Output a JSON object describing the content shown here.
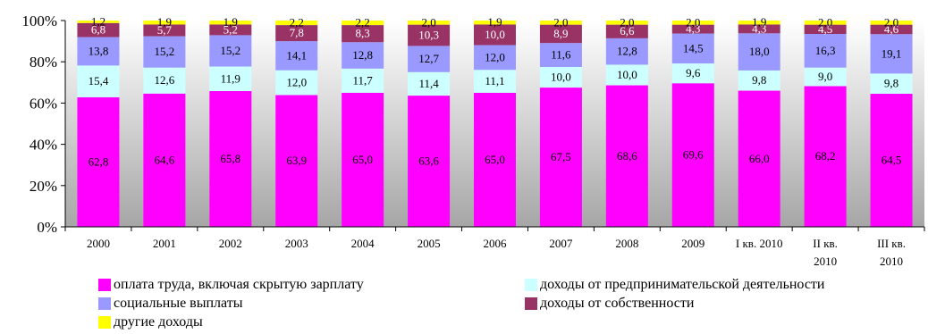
{
  "chart_data": {
    "type": "bar",
    "stacked": true,
    "percent": true,
    "categories": [
      "2000",
      "2001",
      "2002",
      "2003",
      "2004",
      "2005",
      "2006",
      "2007",
      "2008",
      "2009",
      "I кв. 2010",
      "II кв. 2010",
      "III кв. 2010"
    ],
    "category_lines": [
      [
        "2000"
      ],
      [
        "2001"
      ],
      [
        "2002"
      ],
      [
        "2003"
      ],
      [
        "2004"
      ],
      [
        "2005"
      ],
      [
        "2006"
      ],
      [
        "2007"
      ],
      [
        "2008"
      ],
      [
        "2009"
      ],
      [
        "I кв. 2010"
      ],
      [
        "II кв.",
        "2010"
      ],
      [
        "III кв.",
        "2010"
      ]
    ],
    "yticks": [
      "0%",
      "20%",
      "40%",
      "60%",
      "80%",
      "100%"
    ],
    "ylim": [
      0,
      100
    ],
    "legend_position": "bottom",
    "background": "gradient grey",
    "series": [
      {
        "name": "оплата труда, включая скрытую зарплату",
        "color": "#ff00ff",
        "values": [
          62.8,
          64.6,
          65.8,
          63.9,
          65.0,
          63.6,
          65.0,
          67.5,
          68.6,
          69.6,
          66.0,
          68.2,
          64.5
        ],
        "labels": [
          "62,8",
          "64,6",
          "65,8",
          "63,9",
          "65,0",
          "63,6",
          "65,0",
          "67,5",
          "68,6",
          "69,6",
          "66,0",
          "68,2",
          "64,5"
        ]
      },
      {
        "name": "доходы от предпринимательской деятельности",
        "color": "#ccffff",
        "values": [
          15.4,
          12.6,
          11.9,
          12.0,
          11.7,
          11.4,
          11.1,
          10.0,
          10.0,
          9.6,
          9.8,
          9.0,
          9.8
        ],
        "labels": [
          "15,4",
          "12,6",
          "11,9",
          "12,0",
          "11,7",
          "11,4",
          "11,1",
          "10,0",
          "10,0",
          "9,6",
          "9,8",
          "9,0",
          "9,8"
        ]
      },
      {
        "name": "социальные выплаты",
        "color": "#9999ff",
        "values": [
          13.8,
          15.2,
          15.2,
          14.1,
          12.8,
          12.7,
          12.0,
          11.6,
          12.8,
          14.5,
          18.0,
          16.3,
          19.1
        ],
        "labels": [
          "13,8",
          "15,2",
          "15,2",
          "14,1",
          "12,8",
          "12,7",
          "12,0",
          "11,6",
          "12,8",
          "14,5",
          "18,0",
          "16,3",
          "19,1"
        ]
      },
      {
        "name": "доходы от собственности",
        "color": "#993366",
        "values": [
          6.8,
          5.7,
          5.2,
          7.8,
          8.3,
          10.3,
          10.0,
          8.9,
          6.6,
          4.3,
          4.3,
          4.5,
          4.6
        ],
        "labels": [
          "6,8",
          "5,7",
          "5,2",
          "7,8",
          "8,3",
          "10,3",
          "10,0",
          "8,9",
          "6,6",
          "4,3",
          "4,3",
          "4,5",
          "4,6"
        ]
      },
      {
        "name": "другие доходы",
        "color": "#ffff00",
        "values": [
          1.2,
          1.9,
          1.9,
          2.2,
          2.2,
          2.0,
          1.9,
          2.0,
          2.0,
          2.0,
          1.9,
          2.0,
          2.0
        ],
        "labels": [
          "1,2",
          "1,9",
          "1,9",
          "2,2",
          "2,2",
          "2,0",
          "1,9",
          "2,0",
          "2,0",
          "2,0",
          "1,9",
          "2,0",
          "2,0"
        ]
      }
    ]
  }
}
